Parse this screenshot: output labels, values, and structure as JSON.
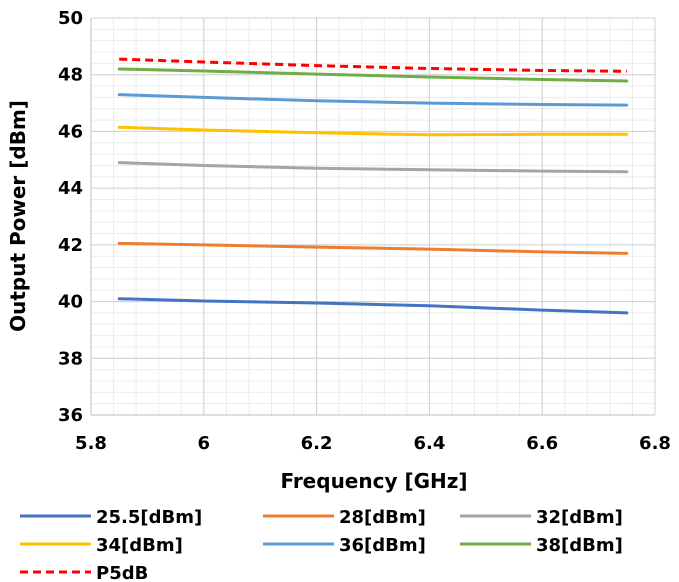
{
  "chart_data": {
    "type": "line",
    "xlabel": "Frequency [GHz]",
    "ylabel": "Output Power [dBm]",
    "xlim": [
      5.8,
      6.8
    ],
    "ylim": [
      36,
      50
    ],
    "xticks": [
      5.8,
      6,
      6.2,
      6.4,
      6.6,
      6.8
    ],
    "xtick_labels": [
      "5.8",
      "6",
      "6.2",
      "6.4",
      "6.6",
      "6.8"
    ],
    "yticks": [
      36,
      38,
      40,
      42,
      44,
      46,
      48,
      50
    ],
    "ytick_labels": [
      "36",
      "38",
      "40",
      "42",
      "44",
      "46",
      "48",
      "50"
    ],
    "grid": "major and minor",
    "legend_position": "bottom",
    "x": [
      5.85,
      6.0,
      6.2,
      6.4,
      6.6,
      6.75
    ],
    "series": [
      {
        "name": "25.5[dBm]",
        "color": "#4472c4",
        "dash": "solid",
        "values": [
          40.1,
          40.02,
          39.95,
          39.85,
          39.7,
          39.6
        ]
      },
      {
        "name": "28[dBm]",
        "color": "#ed7d31",
        "dash": "solid",
        "values": [
          42.05,
          42.0,
          41.92,
          41.85,
          41.75,
          41.7
        ]
      },
      {
        "name": "32[dBm]",
        "color": "#a5a5a5",
        "dash": "solid",
        "values": [
          44.9,
          44.8,
          44.7,
          44.65,
          44.6,
          44.58
        ]
      },
      {
        "name": "34[dBm]",
        "color": "#ffc000",
        "dash": "solid",
        "values": [
          46.15,
          46.05,
          45.95,
          45.88,
          45.9,
          45.9
        ]
      },
      {
        "name": "36[dBm]",
        "color": "#5b9bd5",
        "dash": "solid",
        "values": [
          47.3,
          47.2,
          47.08,
          47.0,
          46.95,
          46.93
        ]
      },
      {
        "name": "38[dBm]",
        "color": "#70ad47",
        "dash": "solid",
        "values": [
          48.2,
          48.13,
          48.02,
          47.92,
          47.83,
          47.78
        ]
      },
      {
        "name": "P5dB",
        "color": "#ff0000",
        "dash": "dashed",
        "values": [
          48.55,
          48.45,
          48.32,
          48.22,
          48.15,
          48.12
        ]
      }
    ]
  }
}
